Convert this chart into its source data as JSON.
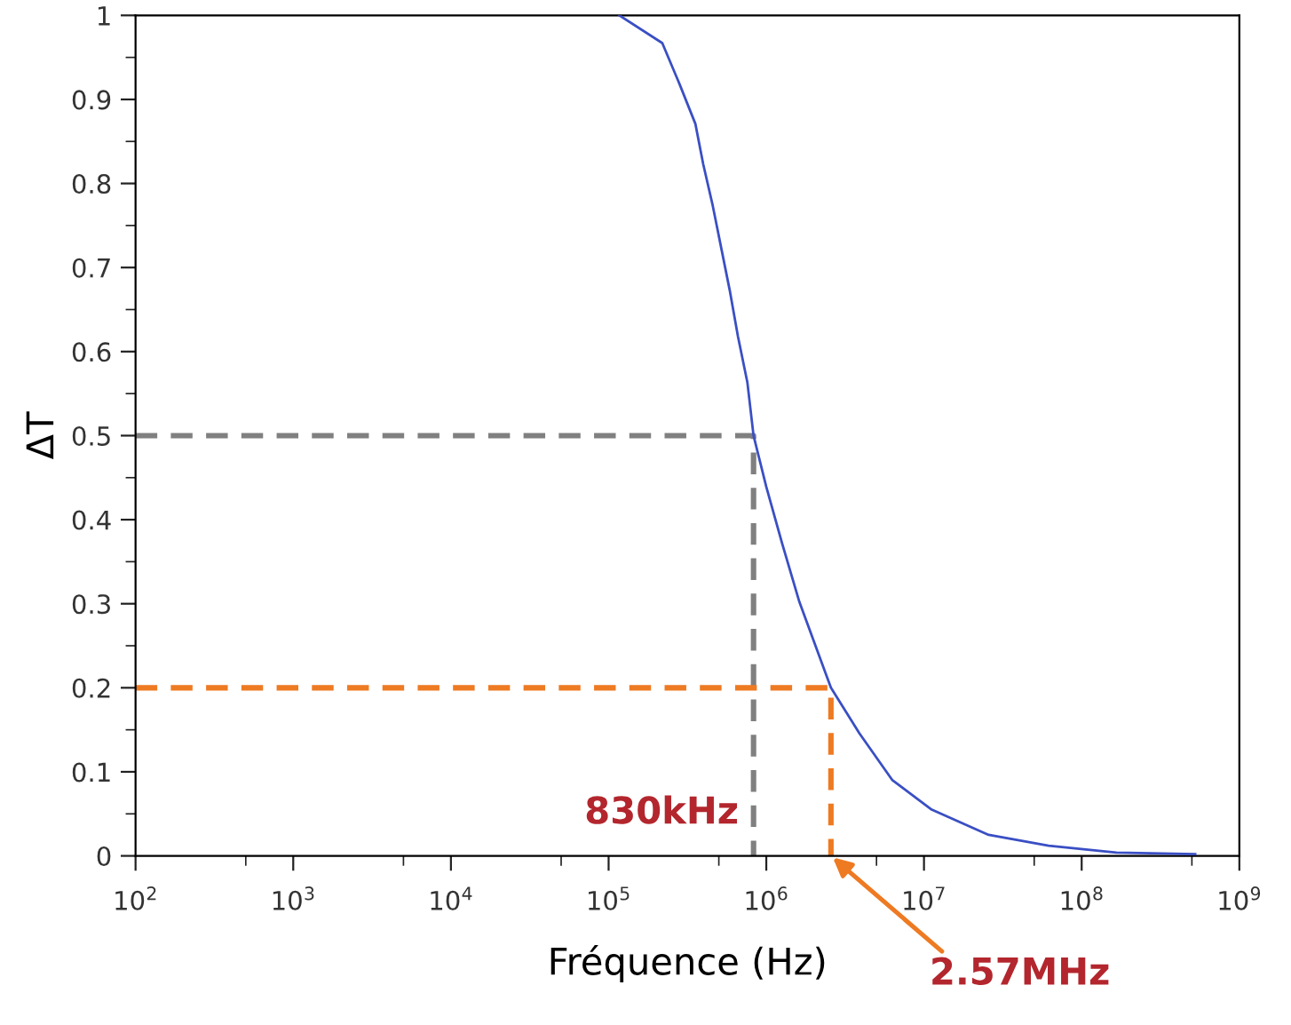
{
  "chart_data": {
    "type": "line",
    "xlabel": "Fréquence (Hz)",
    "ylabel": "ΔT",
    "log": "x",
    "xlim": [
      100,
      1000000000
    ],
    "ylim": [
      0,
      1
    ],
    "xticks": [
      {
        "value": 100,
        "label": "10$^{2}$"
      },
      {
        "value": 500,
        "label": null
      },
      {
        "value": 1000,
        "label": "10$^{3}$"
      },
      {
        "value": 5000,
        "label": null
      },
      {
        "value": 10000,
        "label": "10$^{4}$"
      },
      {
        "value": 50000,
        "label": null
      },
      {
        "value": 100000,
        "label": "10$^{5}$"
      },
      {
        "value": 500000,
        "label": null
      },
      {
        "value": 1000000,
        "label": "10$^{6}$"
      },
      {
        "value": 5000000,
        "label": null
      },
      {
        "value": 10000000,
        "label": "10$^{7}$"
      },
      {
        "value": 50000000,
        "label": null
      },
      {
        "value": 100000000,
        "label": "10$^{8}$"
      },
      {
        "value": 500000000,
        "label": null
      },
      {
        "value": 1000000000,
        "label": "10$^{9}$"
      }
    ],
    "yticks": [
      0,
      {
        "value": 0.05,
        "label": null
      },
      0.1,
      {
        "value": 0.15,
        "label": null
      },
      0.2,
      {
        "value": 0.25,
        "label": null
      },
      0.3,
      {
        "value": 0.35,
        "label": null
      },
      0.4,
      {
        "value": 0.45,
        "label": null
      },
      0.5,
      {
        "value": 0.55,
        "label": null
      },
      0.6,
      {
        "value": 0.65,
        "label": null
      },
      0.7,
      {
        "value": 0.75,
        "label": null
      },
      0.8,
      {
        "value": 0.85,
        "label": null
      },
      0.9,
      {
        "value": 0.95,
        "label": null
      },
      1
    ],
    "grid": false,
    "marker": "none",
    "series": [
      {
        "color": "#3a4fc4",
        "line_style": "solid",
        "x": [
          117000,
          219000,
          282000,
          355000,
          398000,
          457000,
          513000,
          589000,
          661000,
          759000,
          830000,
          1000000,
          1259000,
          1622000,
          2570000,
          3890000,
          6310000,
          11200000,
          25700000,
          61700000,
          166000000,
          525000000
        ],
        "values": [
          1.0,
          0.967,
          0.918,
          0.871,
          0.823,
          0.774,
          0.727,
          0.671,
          0.618,
          0.563,
          0.5,
          0.439,
          0.372,
          0.302,
          0.2,
          0.146,
          0.09,
          0.055,
          0.025,
          0.012,
          0.004,
          0.002
        ]
      },
      {
        "color": "#808080",
        "line_style": "dashed",
        "x": [
          100,
          830000,
          830000
        ],
        "values": [
          0.5,
          0.5,
          0
        ]
      },
      {
        "color": "#ee7a22",
        "line_style": "dashed",
        "x": [
          100,
          2570000,
          2570000
        ],
        "values": [
          0.2,
          0.2,
          0
        ]
      }
    ],
    "annotations": [
      {
        "text": "830kHz",
        "x": 830000,
        "y": 0
      },
      {
        "text": "2.57MHz",
        "x": 2570000,
        "y": 0
      }
    ]
  }
}
